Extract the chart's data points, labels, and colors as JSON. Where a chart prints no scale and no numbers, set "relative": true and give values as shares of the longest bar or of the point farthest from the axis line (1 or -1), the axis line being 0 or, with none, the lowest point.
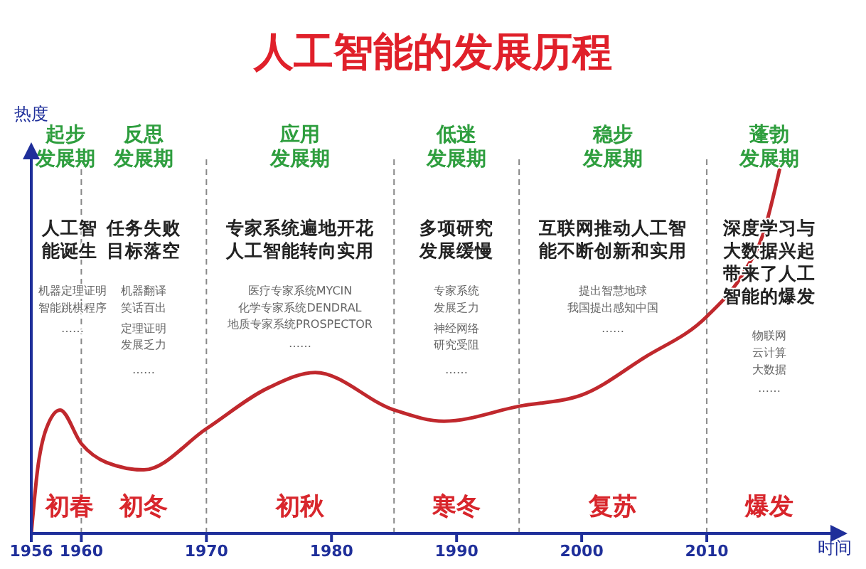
{
  "chart_data": {
    "type": "line",
    "title": "人工智能的发展历程",
    "xlabel": "时间",
    "ylabel": "热度",
    "relative": true,
    "x": [
      1956,
      1956.5,
      1957.2,
      1958.3,
      1960,
      1962,
      1965,
      1970,
      1975,
      1978.7,
      1985,
      1989,
      1995,
      2000,
      2005,
      2010,
      2013,
      2014.5,
      2016
    ],
    "series": [
      {
        "color": "#c0282d",
        "values": [
          0,
          0.17,
          0.28,
          0.33,
          0.24,
          0.19,
          0.17,
          0.28,
          0.39,
          0.43,
          0.33,
          0.3,
          0.34,
          0.37,
          0.47,
          0.58,
          0.7,
          0.8,
          1
        ]
      }
    ],
    "xlim": [
      1956,
      2020
    ],
    "xticks": [
      1956,
      1960,
      1970,
      1980,
      1990,
      2000,
      2010
    ],
    "ref_lines": [
      {
        "axis": "x",
        "value": 1960,
        "color": "#888888",
        "line_style": "dashed"
      },
      {
        "axis": "x",
        "value": 1970,
        "color": "#888888",
        "line_style": "dashed"
      },
      {
        "axis": "x",
        "value": 1985,
        "color": "#888888",
        "line_style": "dashed"
      },
      {
        "axis": "x",
        "value": 1995,
        "color": "#888888",
        "line_style": "dashed"
      },
      {
        "axis": "x",
        "value": 2010,
        "color": "#888888",
        "line_style": "dashed"
      }
    ],
    "annotations": [
      "起步发展期",
      "人工智能诞生",
      "机器定理证明",
      "智能跳棋程序",
      "……",
      "初春",
      "反思发展期",
      "任务失败目标落空",
      "机器翻译",
      "笑话百出",
      "定理证明",
      "发展乏力",
      "……",
      "初冬",
      "应用发展期",
      "专家系统遍地开花人工智能转向实用",
      "医疗专家系统MYCIN",
      "化学专家系统DENDRAL",
      "地质专家系统PROSPECTOR",
      "……",
      "初秋",
      "低迷发展期",
      "多项研究发展缓慢",
      "专家系统",
      "发展乏力",
      "神经网络",
      "研究受阻",
      "……",
      "寒冬",
      "稳步发展期",
      "互联网推动人工智能不断创新和实用",
      "提出智慧地球",
      "我国提出感知中国",
      "……",
      "复苏",
      "蓬勃发展期",
      "深度学习与大数据兴起带来了人工智能的爆发",
      "物联网",
      "云计算",
      "大数据",
      "……",
      "爆发"
    ]
  }
}
